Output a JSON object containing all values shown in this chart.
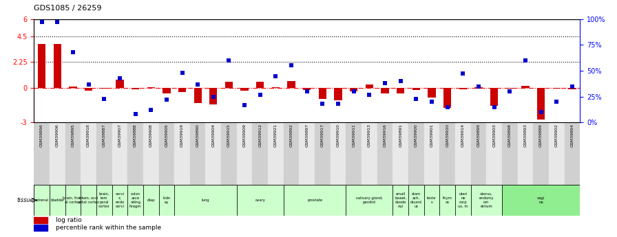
{
  "title": "GDS1085 / 26259",
  "samples": [
    "GSM39896",
    "GSM39906",
    "GSM39895",
    "GSM39918",
    "GSM39887",
    "GSM39907",
    "GSM39888",
    "GSM39908",
    "GSM39905",
    "GSM39919",
    "GSM39890",
    "GSM39904",
    "GSM39915",
    "GSM39909",
    "GSM39912",
    "GSM39921",
    "GSM39892",
    "GSM39897",
    "GSM39917",
    "GSM39910",
    "GSM39911",
    "GSM39913",
    "GSM39916",
    "GSM39891",
    "GSM39900",
    "GSM39901",
    "GSM39920",
    "GSM39914",
    "GSM39899",
    "GSM39903",
    "GSM39898",
    "GSM39893",
    "GSM39889",
    "GSM39902",
    "GSM39894"
  ],
  "log_ratio": [
    3.8,
    3.85,
    0.12,
    -0.25,
    -0.05,
    0.72,
    -0.12,
    0.05,
    -0.45,
    -0.35,
    -1.3,
    -1.45,
    0.55,
    -0.25,
    0.52,
    0.08,
    0.62,
    -0.15,
    -0.95,
    -1.05,
    -0.28,
    0.28,
    -0.45,
    -0.5,
    -0.18,
    -0.85,
    -1.75,
    -0.12,
    0.08,
    -1.55,
    -0.08,
    0.18,
    -2.75,
    -0.08,
    -0.12
  ],
  "percentile_rank": [
    97,
    97,
    68,
    37,
    23,
    43,
    8,
    12,
    22,
    48,
    37,
    25,
    60,
    17,
    27,
    45,
    55,
    30,
    18,
    18,
    30,
    27,
    38,
    40,
    23,
    20,
    15,
    47,
    35,
    15,
    30,
    60,
    10,
    20,
    35
  ],
  "tissues": [
    {
      "label": "adrenal",
      "start": 0,
      "end": 1,
      "color": "#ccffcc"
    },
    {
      "label": "bladder",
      "start": 1,
      "end": 2,
      "color": "#ccffcc"
    },
    {
      "label": "brain, front\nal cortex",
      "start": 2,
      "end": 3,
      "color": "#ccffcc"
    },
    {
      "label": "brain, occi\npital cortex",
      "start": 3,
      "end": 4,
      "color": "#ccffcc"
    },
    {
      "label": "brain,\ntem\nporal\ncortex",
      "start": 4,
      "end": 5,
      "color": "#ccffcc"
    },
    {
      "label": "cervi\nx,\nendo\ncervi",
      "start": 5,
      "end": 6,
      "color": "#ccffcc"
    },
    {
      "label": "colon\nasce\nnding\nhragm",
      "start": 6,
      "end": 7,
      "color": "#ccffcc"
    },
    {
      "label": "diap",
      "start": 7,
      "end": 8,
      "color": "#ccffcc"
    },
    {
      "label": "kidn\ney",
      "start": 8,
      "end": 9,
      "color": "#ccffcc"
    },
    {
      "label": "lung",
      "start": 9,
      "end": 13,
      "color": "#ccffcc"
    },
    {
      "label": "ovary",
      "start": 13,
      "end": 16,
      "color": "#ccffcc"
    },
    {
      "label": "prostate",
      "start": 16,
      "end": 20,
      "color": "#ccffcc"
    },
    {
      "label": "salivary gland,\nparotid",
      "start": 20,
      "end": 23,
      "color": "#ccffcc"
    },
    {
      "label": "small\nbowel,\nduode\nnui",
      "start": 23,
      "end": 24,
      "color": "#ccffcc"
    },
    {
      "label": "stom\nach,\nduund\nus",
      "start": 24,
      "end": 25,
      "color": "#ccffcc"
    },
    {
      "label": "teste\ns",
      "start": 25,
      "end": 26,
      "color": "#ccffcc"
    },
    {
      "label": "thym\nus",
      "start": 26,
      "end": 27,
      "color": "#ccffcc"
    },
    {
      "label": "uteri\nne\ncorp\nus, m",
      "start": 27,
      "end": 28,
      "color": "#ccffcc"
    },
    {
      "label": "uterus,\nendomy\nom\netrium",
      "start": 28,
      "end": 30,
      "color": "#ccffcc"
    },
    {
      "label": "vagi\nna",
      "start": 30,
      "end": 35,
      "color": "#90ee90"
    }
  ],
  "bar_color": "#cc0000",
  "dot_color": "#0000cc",
  "ylim_left": [
    -3,
    6
  ],
  "ylim_right": [
    0,
    100
  ],
  "yticks_left": [
    -3,
    0,
    2.25,
    4.5,
    6
  ],
  "yticks_right": [
    0,
    25,
    50,
    75,
    100
  ],
  "bg_color": "#ffffff",
  "bar_width": 0.5,
  "dot_size": 18
}
